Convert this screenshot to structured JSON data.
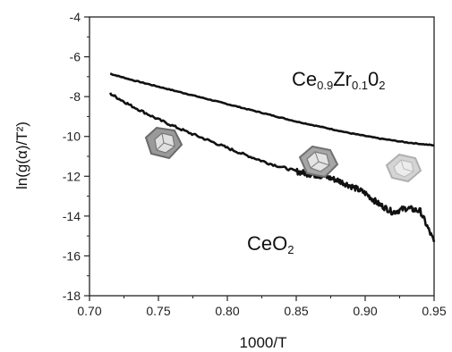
{
  "chart_data": {
    "type": "line",
    "xlabel": "1000/T",
    "ylabel": "ln(g(α)/T²)",
    "xlim": [
      0.7,
      0.95
    ],
    "ylim": [
      -18,
      -4
    ],
    "x_ticks": [
      0.7,
      0.75,
      0.8,
      0.85,
      0.9,
      0.95
    ],
    "x_tick_labels": [
      "0.70",
      "0.75",
      "0.80",
      "0.85",
      "0.90",
      "0.95"
    ],
    "y_ticks": [
      -18,
      -16,
      -14,
      -12,
      -10,
      -8,
      -6,
      -4
    ],
    "y_tick_labels": [
      "-18",
      "-16",
      "-14",
      "-12",
      "-10",
      "-8",
      "-6",
      "-4"
    ],
    "grid": false,
    "series": [
      {
        "label_parts": [
          {
            "text": "Ce",
            "sub": false
          },
          {
            "text": "0.9",
            "sub": true
          },
          {
            "text": "Zr",
            "sub": false
          },
          {
            "text": "0.1",
            "sub": true
          },
          {
            "text": "0",
            "sub": false
          },
          {
            "text": "2",
            "sub": true
          }
        ],
        "x": [
          0.715,
          0.73,
          0.75,
          0.77,
          0.79,
          0.81,
          0.83,
          0.85,
          0.87,
          0.89,
          0.91,
          0.93,
          0.95
        ],
        "y": [
          -6.85,
          -7.15,
          -7.5,
          -7.85,
          -8.2,
          -8.55,
          -8.9,
          -9.25,
          -9.55,
          -9.85,
          -10.1,
          -10.3,
          -10.45
        ]
      },
      {
        "label_parts": [
          {
            "text": "CeO",
            "sub": false
          },
          {
            "text": "2",
            "sub": true
          }
        ],
        "x": [
          0.715,
          0.73,
          0.75,
          0.77,
          0.79,
          0.81,
          0.83,
          0.85,
          0.86,
          0.87,
          0.88,
          0.89,
          0.9,
          0.91,
          0.92,
          0.93,
          0.94,
          0.95
        ],
        "y": [
          -7.85,
          -8.45,
          -9.15,
          -9.75,
          -10.3,
          -10.85,
          -11.35,
          -11.75,
          -11.9,
          -12.0,
          -12.2,
          -12.5,
          -12.85,
          -13.4,
          -13.8,
          -13.6,
          -13.75,
          -15.3
        ]
      }
    ]
  }
}
